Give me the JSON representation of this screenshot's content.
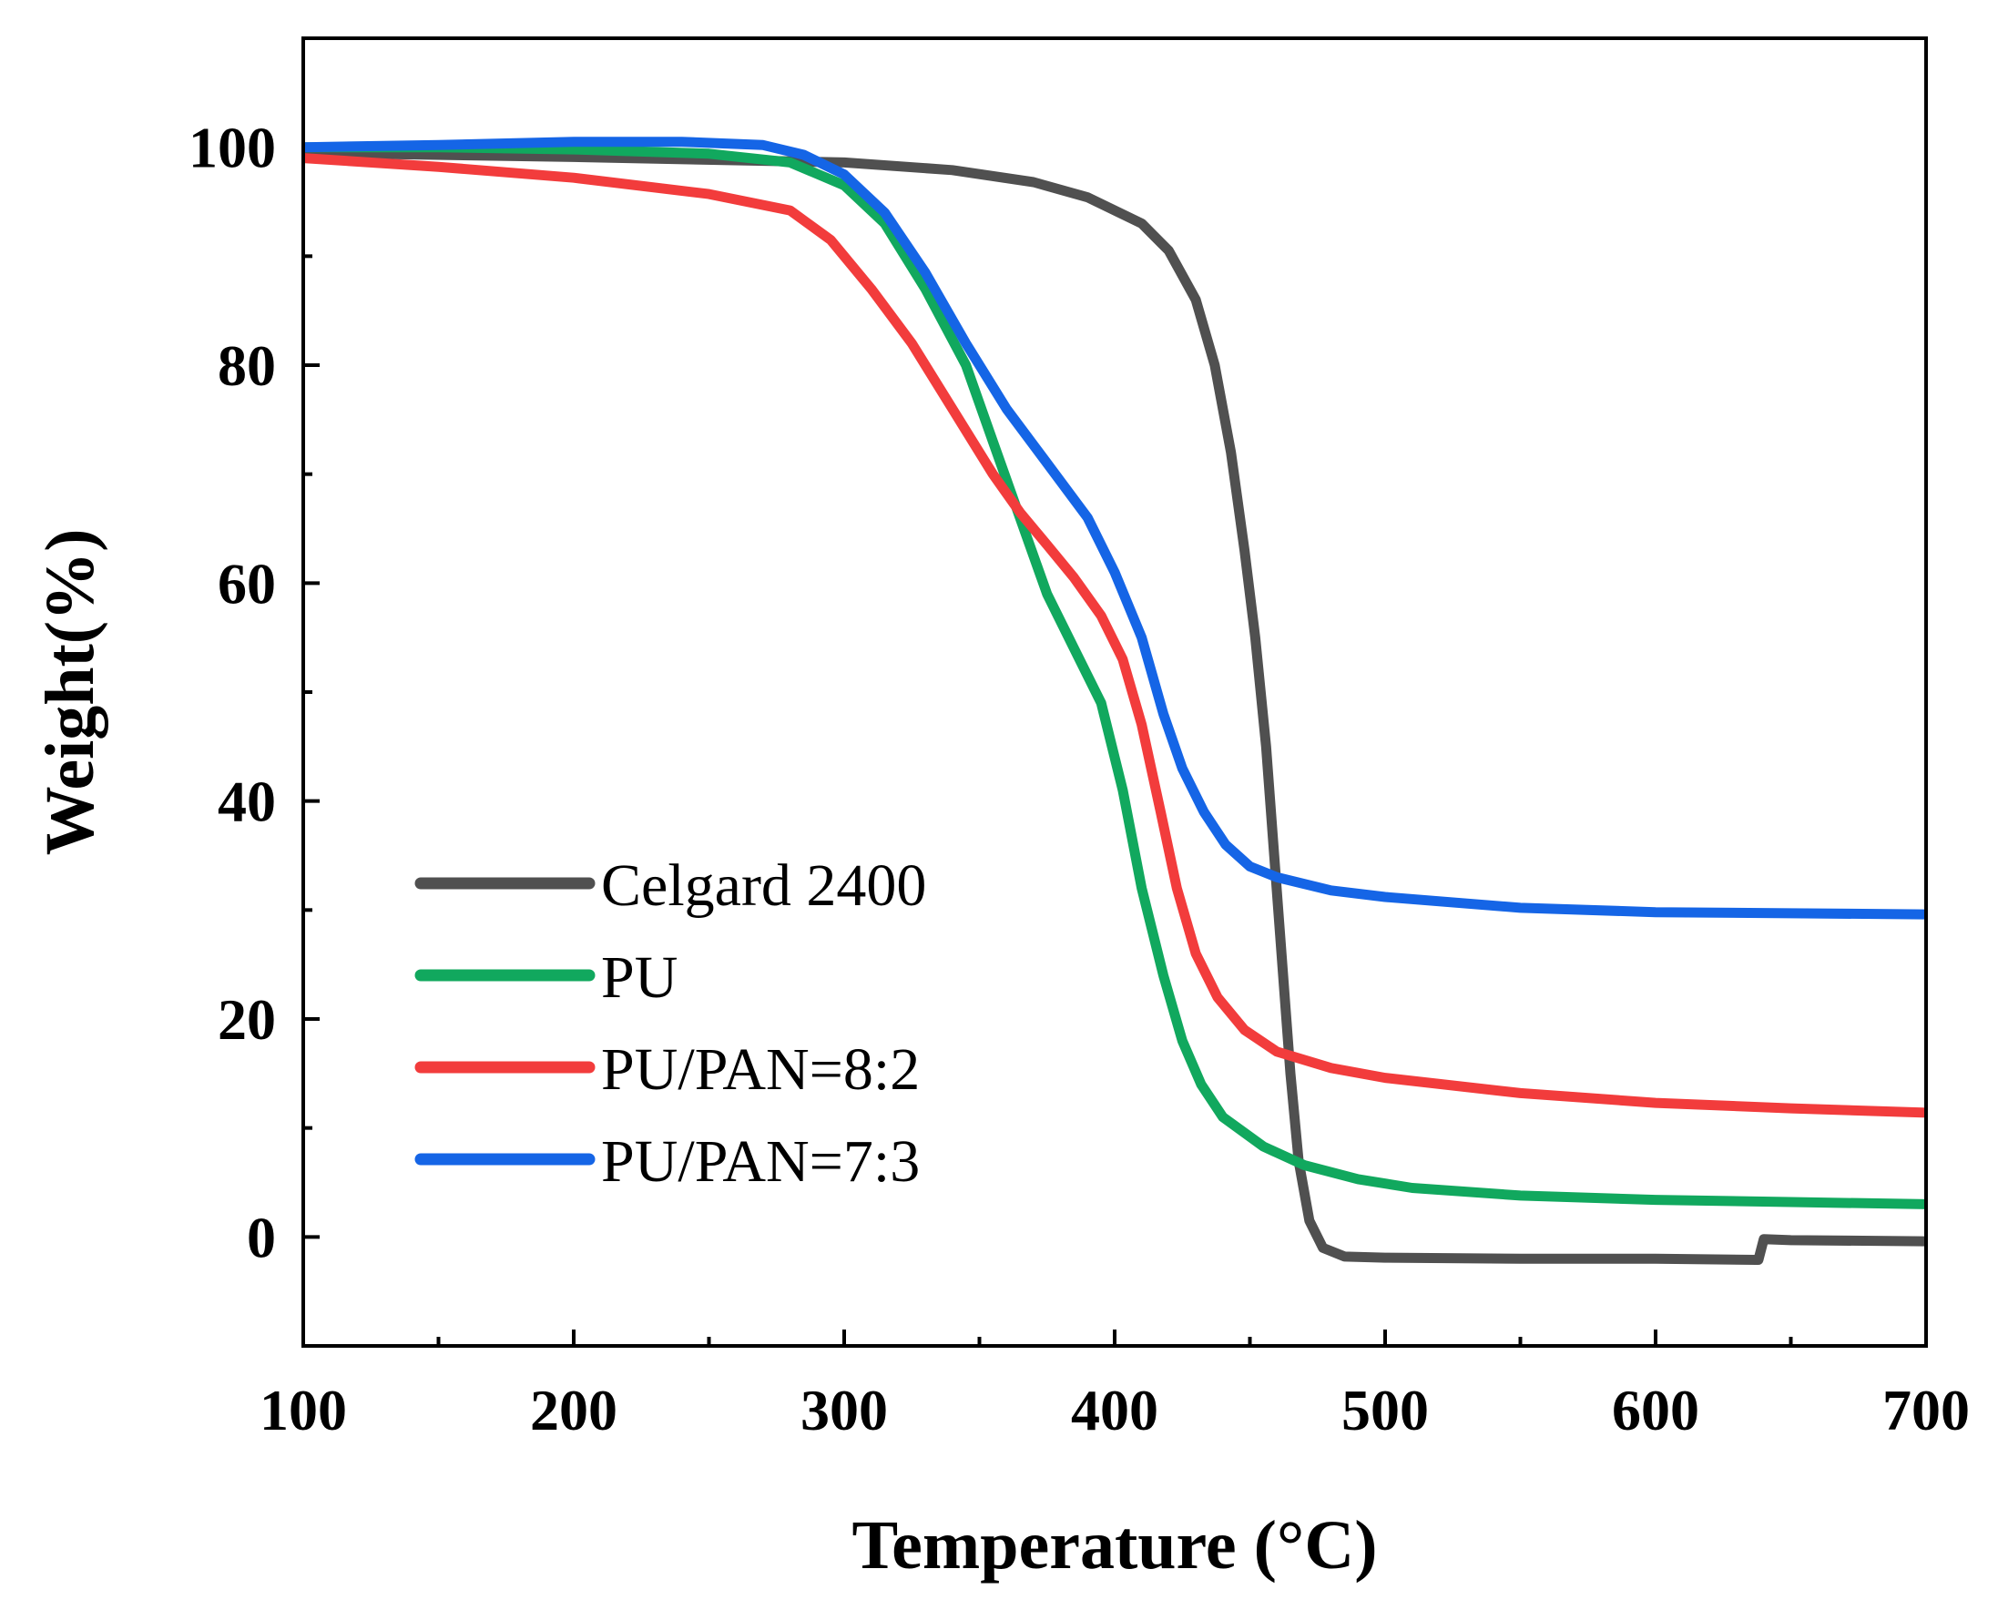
{
  "chart_data": {
    "type": "line",
    "title": "",
    "xlabel": "Temperature (°C)",
    "ylabel": "Weight(%)",
    "xlim": [
      100,
      700
    ],
    "ylim": [
      -10,
      110
    ],
    "xticks": [
      100,
      200,
      300,
      400,
      500,
      600,
      700
    ],
    "yticks": [
      0,
      20,
      40,
      60,
      80,
      100
    ],
    "legend_position": "bottom-left",
    "grid": false,
    "series": [
      {
        "name": "Celgard 2400",
        "color": "#505050",
        "points": [
          [
            100,
            99.5
          ],
          [
            200,
            99.1
          ],
          [
            300,
            98.6
          ],
          [
            340,
            97.9
          ],
          [
            370,
            96.8
          ],
          [
            390,
            95.4
          ],
          [
            410,
            93.0
          ],
          [
            420,
            90.5
          ],
          [
            430,
            86.0
          ],
          [
            437,
            80.0
          ],
          [
            443,
            72.0
          ],
          [
            448,
            63.0
          ],
          [
            452,
            55.0
          ],
          [
            456,
            45.0
          ],
          [
            459,
            35.0
          ],
          [
            462,
            25.0
          ],
          [
            465,
            15.0
          ],
          [
            468,
            7.0
          ],
          [
            472,
            1.5
          ],
          [
            477,
            -1.0
          ],
          [
            485,
            -1.8
          ],
          [
            500,
            -1.9
          ],
          [
            550,
            -2.0
          ],
          [
            600,
            -2.0
          ],
          [
            637,
            -2.1
          ],
          [
            638,
            -2.1
          ],
          [
            640,
            -0.2
          ],
          [
            650,
            -0.3
          ],
          [
            700,
            -0.4
          ]
        ]
      },
      {
        "name": "PU",
        "color": "#11a85e",
        "points": [
          [
            100,
            100.0
          ],
          [
            150,
            100.0
          ],
          [
            200,
            99.8
          ],
          [
            250,
            99.4
          ],
          [
            280,
            98.6
          ],
          [
            300,
            96.5
          ],
          [
            315,
            93.0
          ],
          [
            330,
            87.0
          ],
          [
            345,
            80.0
          ],
          [
            355,
            73.0
          ],
          [
            365,
            66.0
          ],
          [
            375,
            59.0
          ],
          [
            385,
            54.0
          ],
          [
            395,
            49.0
          ],
          [
            403,
            41.0
          ],
          [
            410,
            32.0
          ],
          [
            418,
            24.0
          ],
          [
            425,
            18.0
          ],
          [
            432,
            14.0
          ],
          [
            440,
            11.0
          ],
          [
            455,
            8.3
          ],
          [
            470,
            6.6
          ],
          [
            490,
            5.3
          ],
          [
            510,
            4.5
          ],
          [
            550,
            3.8
          ],
          [
            600,
            3.4
          ],
          [
            650,
            3.2
          ],
          [
            700,
            3.0
          ]
        ]
      },
      {
        "name": "PU/PAN=8:2",
        "color": "#f23c3c",
        "points": [
          [
            100,
            99.0
          ],
          [
            150,
            98.2
          ],
          [
            200,
            97.2
          ],
          [
            250,
            95.7
          ],
          [
            280,
            94.2
          ],
          [
            295,
            91.5
          ],
          [
            310,
            87.0
          ],
          [
            325,
            82.0
          ],
          [
            340,
            76.0
          ],
          [
            355,
            70.0
          ],
          [
            365,
            66.5
          ],
          [
            375,
            63.5
          ],
          [
            385,
            60.5
          ],
          [
            395,
            57.0
          ],
          [
            403,
            53.0
          ],
          [
            410,
            47.0
          ],
          [
            417,
            39.0
          ],
          [
            423,
            32.0
          ],
          [
            430,
            26.0
          ],
          [
            438,
            22.0
          ],
          [
            448,
            19.0
          ],
          [
            460,
            17.0
          ],
          [
            480,
            15.5
          ],
          [
            500,
            14.6
          ],
          [
            550,
            13.2
          ],
          [
            600,
            12.3
          ],
          [
            650,
            11.8
          ],
          [
            700,
            11.4
          ]
        ]
      },
      {
        "name": "PU/PAN=7:3",
        "color": "#1565e6",
        "points": [
          [
            100,
            100.0
          ],
          [
            150,
            100.2
          ],
          [
            200,
            100.5
          ],
          [
            240,
            100.5
          ],
          [
            270,
            100.2
          ],
          [
            285,
            99.3
          ],
          [
            300,
            97.5
          ],
          [
            315,
            94.0
          ],
          [
            330,
            88.5
          ],
          [
            345,
            82.0
          ],
          [
            360,
            76.0
          ],
          [
            375,
            71.0
          ],
          [
            390,
            66.0
          ],
          [
            400,
            61.0
          ],
          [
            410,
            55.0
          ],
          [
            418,
            48.0
          ],
          [
            425,
            43.0
          ],
          [
            433,
            39.0
          ],
          [
            441,
            36.0
          ],
          [
            450,
            34.0
          ],
          [
            460,
            33.0
          ],
          [
            480,
            31.8
          ],
          [
            500,
            31.2
          ],
          [
            550,
            30.2
          ],
          [
            600,
            29.8
          ],
          [
            650,
            29.7
          ],
          [
            700,
            29.6
          ]
        ]
      }
    ]
  }
}
